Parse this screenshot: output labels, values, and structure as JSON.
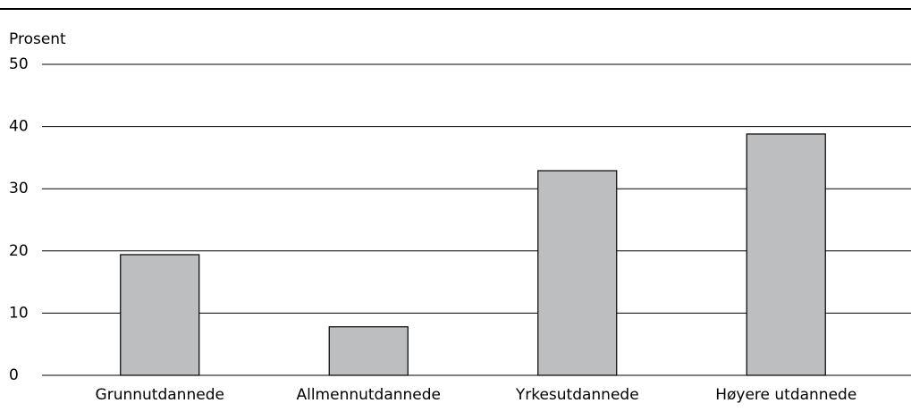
{
  "chart_data": {
    "type": "bar",
    "y_axis_label": "Prosent",
    "categories": [
      "Grunnutdannede",
      "Allmennutdannede",
      "Yrkesutdannede",
      "Høyere utdannede"
    ],
    "values": [
      19.4,
      7.8,
      32.9,
      38.8
    ],
    "color": "#bcbec0",
    "ylim": [
      0,
      50
    ],
    "yticks": [
      0,
      10,
      20,
      30,
      40,
      50
    ],
    "grid": true
  }
}
